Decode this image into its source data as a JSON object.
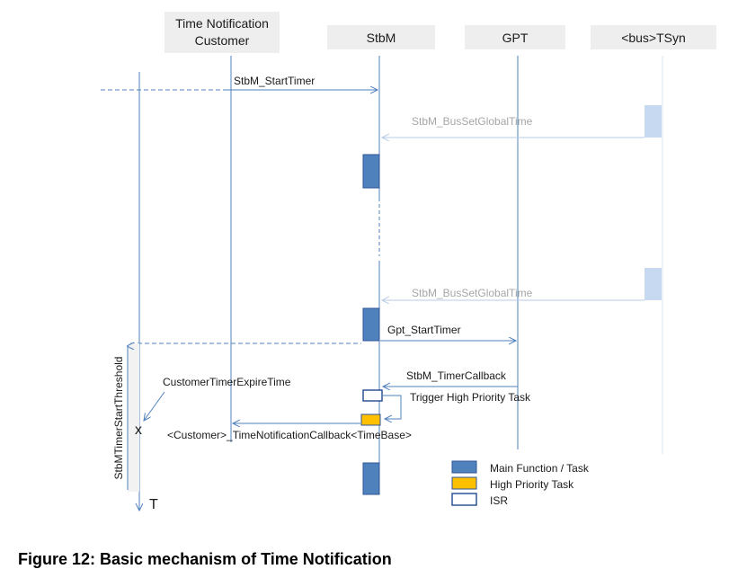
{
  "colors": {
    "lifeline": "#4f81bd",
    "header_bg": "#eeeeee",
    "main_task": "#4f81bd",
    "main_task_border": "#2f5597",
    "high_priority": "#ffc000",
    "isr_border": "#2f5597",
    "faint_activation": "#c6d9f1",
    "faint_arrow": "#b8cce4"
  },
  "participants": [
    {
      "label_line1": "Time Notification",
      "label_line2": "Customer"
    },
    {
      "label": "StbM"
    },
    {
      "label": "GPT"
    },
    {
      "label": "<bus>TSyn"
    }
  ],
  "messages": {
    "start_timer": "StbM_StartTimer",
    "bus_set_global_time_1": "StbM_BusSetGlobalTime",
    "bus_set_global_time_2": "StbM_BusSetGlobalTime",
    "gpt_start_timer": "Gpt_StartTimer",
    "timer_callback": "StbM_TimerCallback",
    "trigger_high_priority": "Trigger High Priority Task",
    "notification_callback": "<Customer>_TimeNotificationCallback<TimeBase>"
  },
  "annotations": {
    "expire_time": "CustomerTimerExpireTime",
    "threshold": "StbMTimerStartThreshold",
    "x_mark": "x",
    "time_axis": "T"
  },
  "legend": [
    {
      "label": "Main Function / Task",
      "icon": "main-task-swatch"
    },
    {
      "label": "High Priority Task",
      "icon": "high-priority-swatch"
    },
    {
      "label": "ISR",
      "icon": "isr-swatch"
    }
  ],
  "caption": "Figure 12: Basic mechanism of Time Notification"
}
